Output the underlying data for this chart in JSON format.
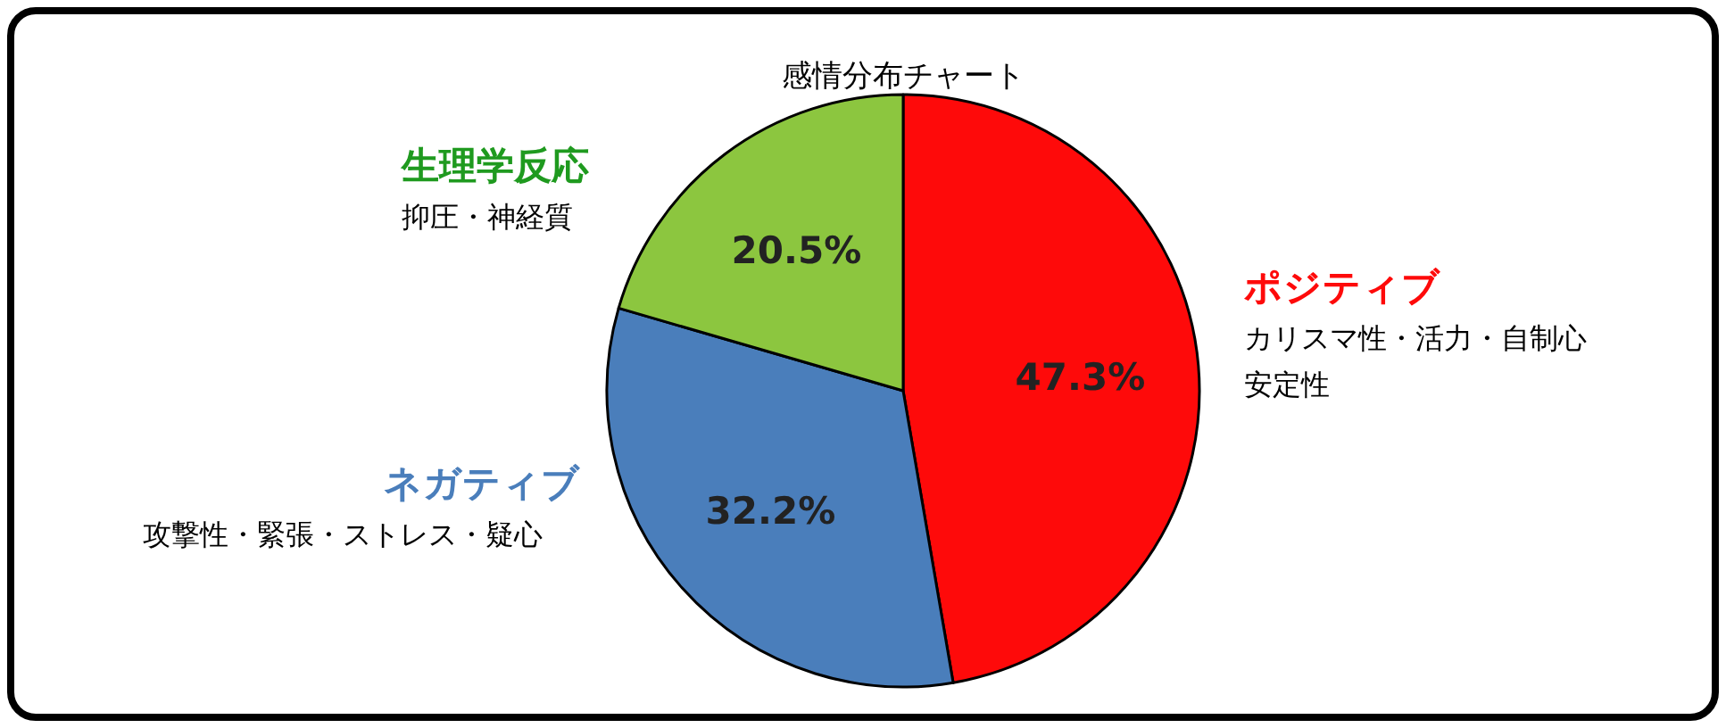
{
  "chart_data": {
    "type": "pie",
    "title": "感情分布チャート",
    "categories": [
      "ポジティブ",
      "ネガティブ",
      "生理学反応"
    ],
    "values": [
      47.3,
      32.2,
      20.5
    ],
    "value_labels": [
      "47.3%",
      "32.2%",
      "20.5%"
    ],
    "colors": [
      "#fe0a0a",
      "#4a7ebb",
      "#8cc63f"
    ],
    "annotations": [
      "カリスマ性・活力・自制心",
      "安定性",
      "攻撃性・緊張・ストレス・疑心",
      "抑圧・神経質"
    ]
  }
}
